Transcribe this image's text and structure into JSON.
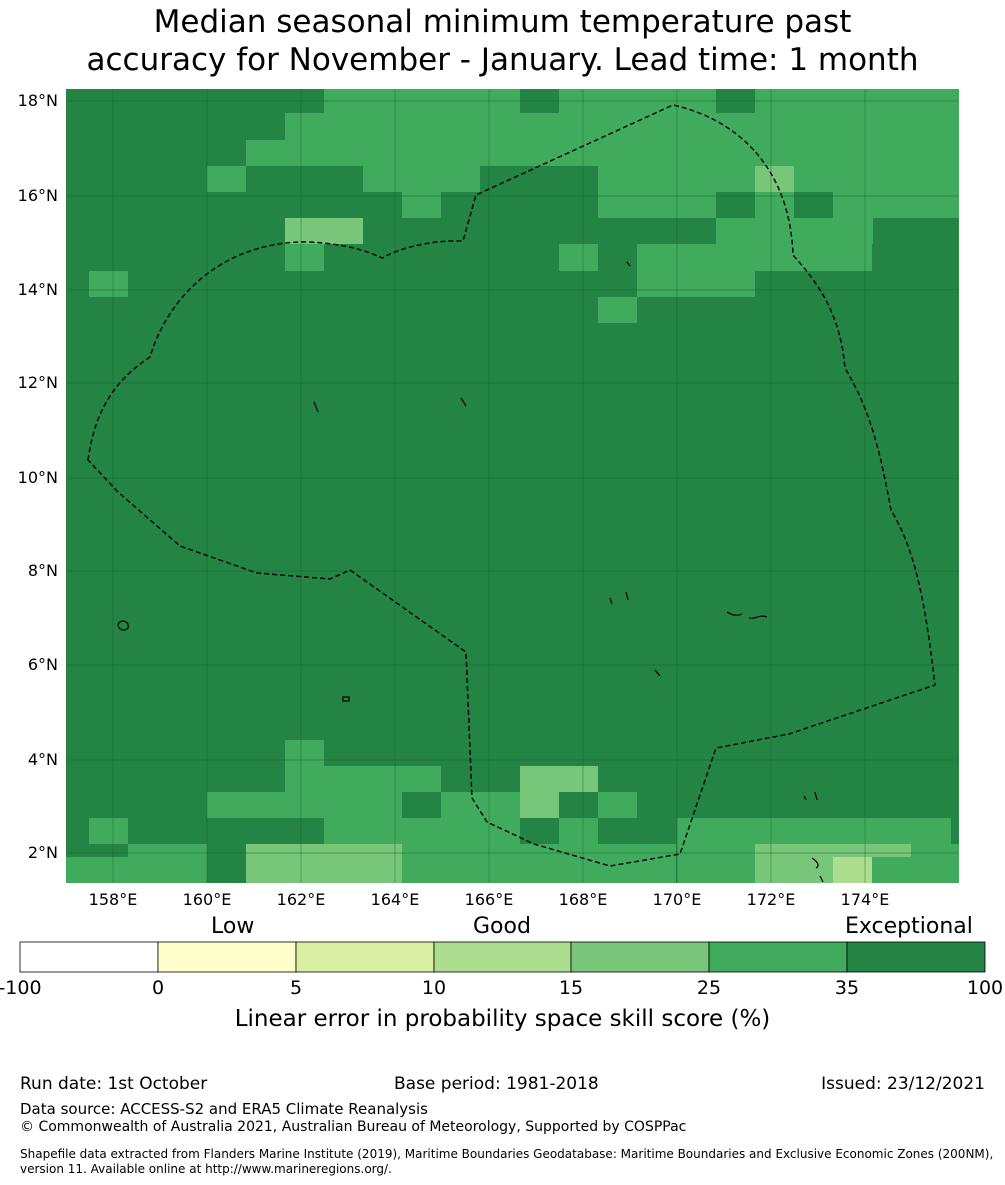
{
  "title": {
    "line1": "Median seasonal minimum temperature past",
    "line2": "accuracy for November - January. Lead time: 1 month"
  },
  "map": {
    "lon_range": [
      157,
      176
    ],
    "lat_range": [
      1.4,
      18.3
    ],
    "lat_ticks": [
      "18°N",
      "16°N",
      "14°N",
      "12°N",
      "10°N",
      "8°N",
      "6°N",
      "4°N",
      "2°N"
    ],
    "lon_ticks": [
      "158°E",
      "160°E",
      "162°E",
      "164°E",
      "166°E",
      "168°E",
      "170°E",
      "172°E",
      "174°E"
    ],
    "eez_boundary": "dashed black line",
    "category_colors": {
      "exceptional": "#238443",
      "very_good": "#41ab5d",
      "good": "#78c679",
      "fair": "#addd8e",
      "low_pos": "#d9f0a3"
    }
  },
  "colorbar": {
    "category_labels": {
      "low": "Low",
      "good": "Good",
      "exceptional": "Exceptional"
    },
    "ticks": [
      "-100",
      "0",
      "5",
      "10",
      "15",
      "25",
      "35",
      "100"
    ],
    "colors": [
      "#ffffff",
      "#ffffcc",
      "#d9f0a3",
      "#addd8e",
      "#78c679",
      "#41ab5d",
      "#238443"
    ],
    "title": "Linear error in probability space skill score (%)"
  },
  "footer": {
    "run_date": "Run date: 1st October",
    "base_period": "Base period: 1981-2018",
    "issued": "Issued: 23/12/2021",
    "data_source": "Data source: ACCESS-S2 and ERA5 Climate Reanalysis",
    "copyright": "© Commonwealth of Australia 2021, Australian Bureau of Meteorology, Supported by COSPPac",
    "shapefile_line1": "Shapefile data extracted from Flanders Marine Institute (2019), Maritime Boundaries Geodatabase: Maritime Boundaries and Exclusive Economic Zones (200NM),",
    "shapefile_line2": "version 11. Available online at http://www.marineregions.org/."
  }
}
